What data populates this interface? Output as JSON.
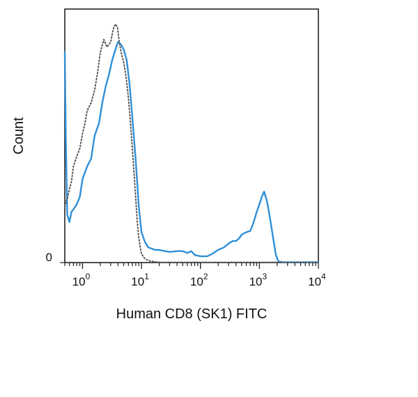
{
  "chart_data": {
    "type": "line",
    "xlabel": "Human CD8 (SK1) FITC",
    "ylabel": "Count",
    "xscale": "log",
    "xlim": [
      0.5,
      10000
    ],
    "ylim": [
      0,
      100
    ],
    "x_ticks": [
      {
        "value": 1,
        "base": "10",
        "exp": "0"
      },
      {
        "value": 10,
        "base": "10",
        "exp": "1"
      },
      {
        "value": 100,
        "base": "10",
        "exp": "2"
      },
      {
        "value": 1000,
        "base": "10",
        "exp": "3"
      },
      {
        "value": 10000,
        "base": "10",
        "exp": "4"
      }
    ],
    "y_ticks": [
      {
        "value": 0,
        "label": "0"
      }
    ],
    "grid": false,
    "series": [
      {
        "style": "solid",
        "color": "#2f8fd8",
        "x": [
          0.5,
          0.52,
          0.55,
          0.6,
          0.65,
          0.7,
          0.8,
          0.9,
          1.0,
          1.2,
          1.4,
          1.6,
          1.9,
          2.2,
          2.5,
          2.8,
          3.2,
          3.6,
          4.0,
          4.5,
          5.0,
          5.6,
          6.3,
          7.0,
          8.0,
          9.0,
          10,
          11.5,
          13,
          15,
          17,
          20,
          25,
          30,
          40,
          50,
          60,
          70,
          80,
          100,
          130,
          160,
          200,
          250,
          300,
          350,
          400,
          450,
          500,
          600,
          700,
          800,
          900,
          1000,
          1100,
          1200,
          1350,
          1500,
          1700,
          1900,
          2100,
          2400,
          2700,
          3000,
          4000,
          5000,
          7000,
          10000
        ],
        "y": [
          83,
          50,
          19,
          16,
          20,
          21,
          23,
          26,
          33,
          38,
          41,
          50,
          55,
          64,
          70,
          74,
          80,
          84,
          87,
          86,
          84,
          80,
          70,
          57,
          40,
          22,
          12,
          8,
          6,
          5.5,
          5,
          5,
          4.5,
          4.2,
          4.5,
          4.5,
          3.8,
          4.5,
          3,
          2.5,
          2.5,
          3.5,
          5,
          6,
          7.5,
          8.5,
          8.5,
          9.5,
          11,
          12,
          12.5,
          16,
          20,
          23,
          26,
          28,
          24,
          18,
          10,
          3,
          0.5,
          0.2,
          0.1,
          0.1,
          0.1,
          0.1,
          0.1,
          0.1
        ]
      },
      {
        "style": "dotted",
        "color": "#555555",
        "x": [
          0.5,
          0.52,
          0.55,
          0.6,
          0.65,
          0.7,
          0.8,
          0.9,
          1.0,
          1.1,
          1.2,
          1.4,
          1.6,
          1.8,
          2.0,
          2.3,
          2.6,
          3.0,
          3.3,
          3.6,
          3.9,
          4.2,
          4.6,
          5.0,
          5.5,
          6.0,
          6.5,
          7.0,
          7.5,
          8.0,
          8.5,
          9.0,
          9.5,
          10,
          11,
          12,
          14,
          17,
          20,
          30,
          50,
          100,
          1000,
          10000
        ],
        "y": [
          22,
          24,
          25,
          29,
          32,
          38,
          42,
          45,
          51,
          55,
          60,
          63,
          68,
          75,
          83,
          88,
          85,
          87,
          92,
          94,
          93,
          87,
          82,
          79,
          73,
          65,
          55,
          45,
          35,
          25,
          16,
          10,
          6,
          3.5,
          2,
          1.2,
          0.6,
          0.3,
          0.1,
          0.1,
          0.1,
          0.1,
          0.1,
          0.1
        ]
      }
    ]
  }
}
